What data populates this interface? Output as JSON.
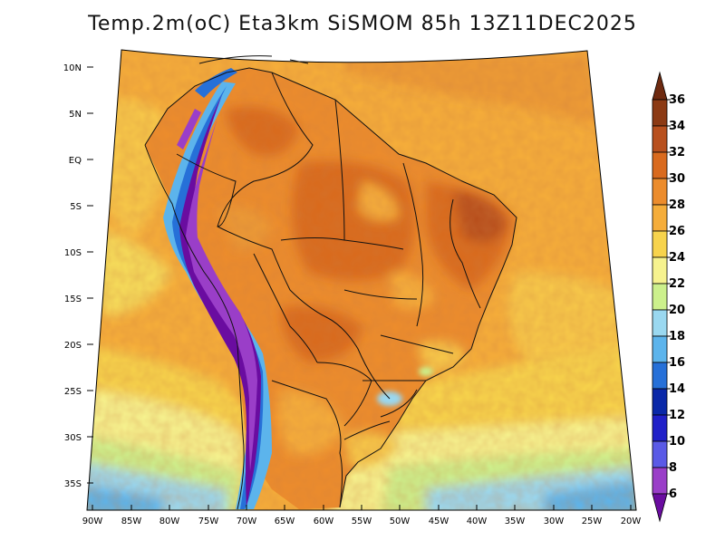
{
  "title": "Temp.2m(oC) Eta3km SiSMOM 85h 13Z11DEC2025",
  "map": {
    "lon_labels": [
      "90W",
      "85W",
      "80W",
      "75W",
      "70W",
      "65W",
      "60W",
      "55W",
      "50W",
      "45W",
      "40W",
      "35W",
      "30W",
      "25W",
      "20W"
    ],
    "lat_labels": [
      "10N",
      "5N",
      "EQ",
      "5S",
      "10S",
      "15S",
      "20S",
      "25S",
      "30S",
      "35S"
    ],
    "lon_range": [
      -90,
      -20
    ],
    "lat_range": [
      -38,
      11
    ]
  },
  "colorbar": {
    "labels": [
      "36",
      "34",
      "32",
      "30",
      "28",
      "26",
      "24",
      "22",
      "20",
      "18",
      "16",
      "14",
      "12",
      "10",
      "8",
      "6"
    ],
    "colors": [
      "#6e2a10",
      "#8c3a14",
      "#b8501e",
      "#d96a1e",
      "#ec8c2c",
      "#f5ad3a",
      "#f7d34c",
      "#f6f28e",
      "#ccf08c",
      "#9ad8f0",
      "#5cb4ec",
      "#2670d8",
      "#0a28a8",
      "#2020c8",
      "#5a5ae6",
      "#9a3ec8",
      "#6a0ca0"
    ]
  }
}
